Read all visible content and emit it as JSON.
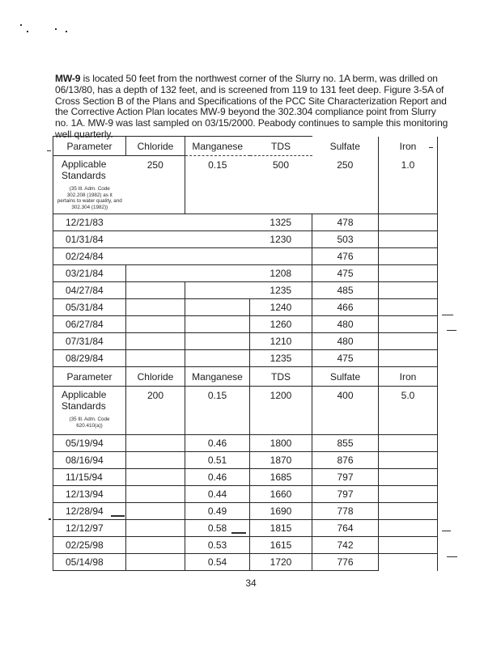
{
  "intro": {
    "lead": "MW-9",
    "body": " is located 50 feet from the northwest corner of the Slurry no. 1A berm, was drilled on 06/13/80, has a depth of 132 feet, and is screened from 119 to 131 feet deep.  Figure 3-5A of Cross Section B of the Plans and Specifications of the PCC Site Characterization Report and the Corrective Action Plan locates MW-9 beyond the 302.304 compliance point from Slurry no. 1A.  MW-9 was last sampled on 03/15/2000.  Peabody continues to sample this monitoring well quarterly."
  },
  "colors": {
    "ink": "#1a1a1a",
    "paper": "#ffffff"
  },
  "table": {
    "columns": [
      "Parameter",
      "Chloride",
      "Manganese",
      "TDS",
      "Sulfate",
      "Iron"
    ],
    "sections": [
      {
        "header": [
          "Parameter",
          "Chloride",
          "Manganese",
          "TDS",
          "Sulfate",
          "Iron"
        ],
        "standards_label": [
          "Applicable",
          "Standards"
        ],
        "standards_citation": [
          "(35 Ill. Adm. Code",
          "302.208 (1982) as it",
          "pertains to water quality, and",
          "302.304 (1982))"
        ],
        "standards_values": [
          "250",
          "0.15",
          "500",
          "250",
          "1.0"
        ],
        "rows": [
          [
            "12/21/83",
            "",
            "",
            "1325",
            "478",
            ""
          ],
          [
            "01/31/84",
            "",
            "",
            "1230",
            "503",
            ""
          ],
          [
            "02/24/84",
            "",
            "",
            "",
            "476",
            ""
          ],
          [
            "03/21/84",
            "",
            "",
            "1208",
            "475",
            ""
          ],
          [
            "04/27/84",
            "",
            "",
            "1235",
            "485",
            ""
          ],
          [
            "05/31/84",
            "",
            "",
            "1240",
            "466",
            ""
          ],
          [
            "06/27/84",
            "",
            "",
            "1260",
            "480",
            ""
          ],
          [
            "07/31/84",
            "",
            "",
            "1210",
            "480",
            ""
          ],
          [
            "08/29/84",
            "",
            "",
            "1235",
            "475",
            ""
          ]
        ]
      },
      {
        "header": [
          "Parameter",
          "Chloride",
          "Manganese",
          "TDS",
          "Sulfate",
          "Iron"
        ],
        "standards_label": [
          "Applicable",
          "Standards"
        ],
        "standards_citation": [
          "(35 Ill. Adm. Code",
          "620.410(a))"
        ],
        "standards_values": [
          "200",
          "0.15",
          "1200",
          "400",
          "5.0"
        ],
        "rows": [
          [
            "05/19/94",
            "",
            "0.46",
            "1800",
            "855",
            ""
          ],
          [
            "08/16/94",
            "",
            "0.51",
            "1870",
            "876",
            ""
          ],
          [
            "11/15/94",
            "",
            "0.46",
            "1685",
            "797",
            ""
          ],
          [
            "12/13/94",
            "",
            "0.44",
            "1660",
            "797",
            ""
          ],
          [
            "12/28/94",
            "",
            "0.49",
            "1690",
            "778",
            ""
          ],
          [
            "12/12/97",
            "",
            "0.58",
            "1815",
            "764",
            ""
          ],
          [
            "02/25/98",
            "",
            "0.53",
            "1615",
            "742",
            ""
          ],
          [
            "05/14/98",
            "",
            "0.54",
            "1720",
            "776",
            ""
          ]
        ]
      }
    ]
  },
  "footer": {
    "page_number": "34"
  }
}
